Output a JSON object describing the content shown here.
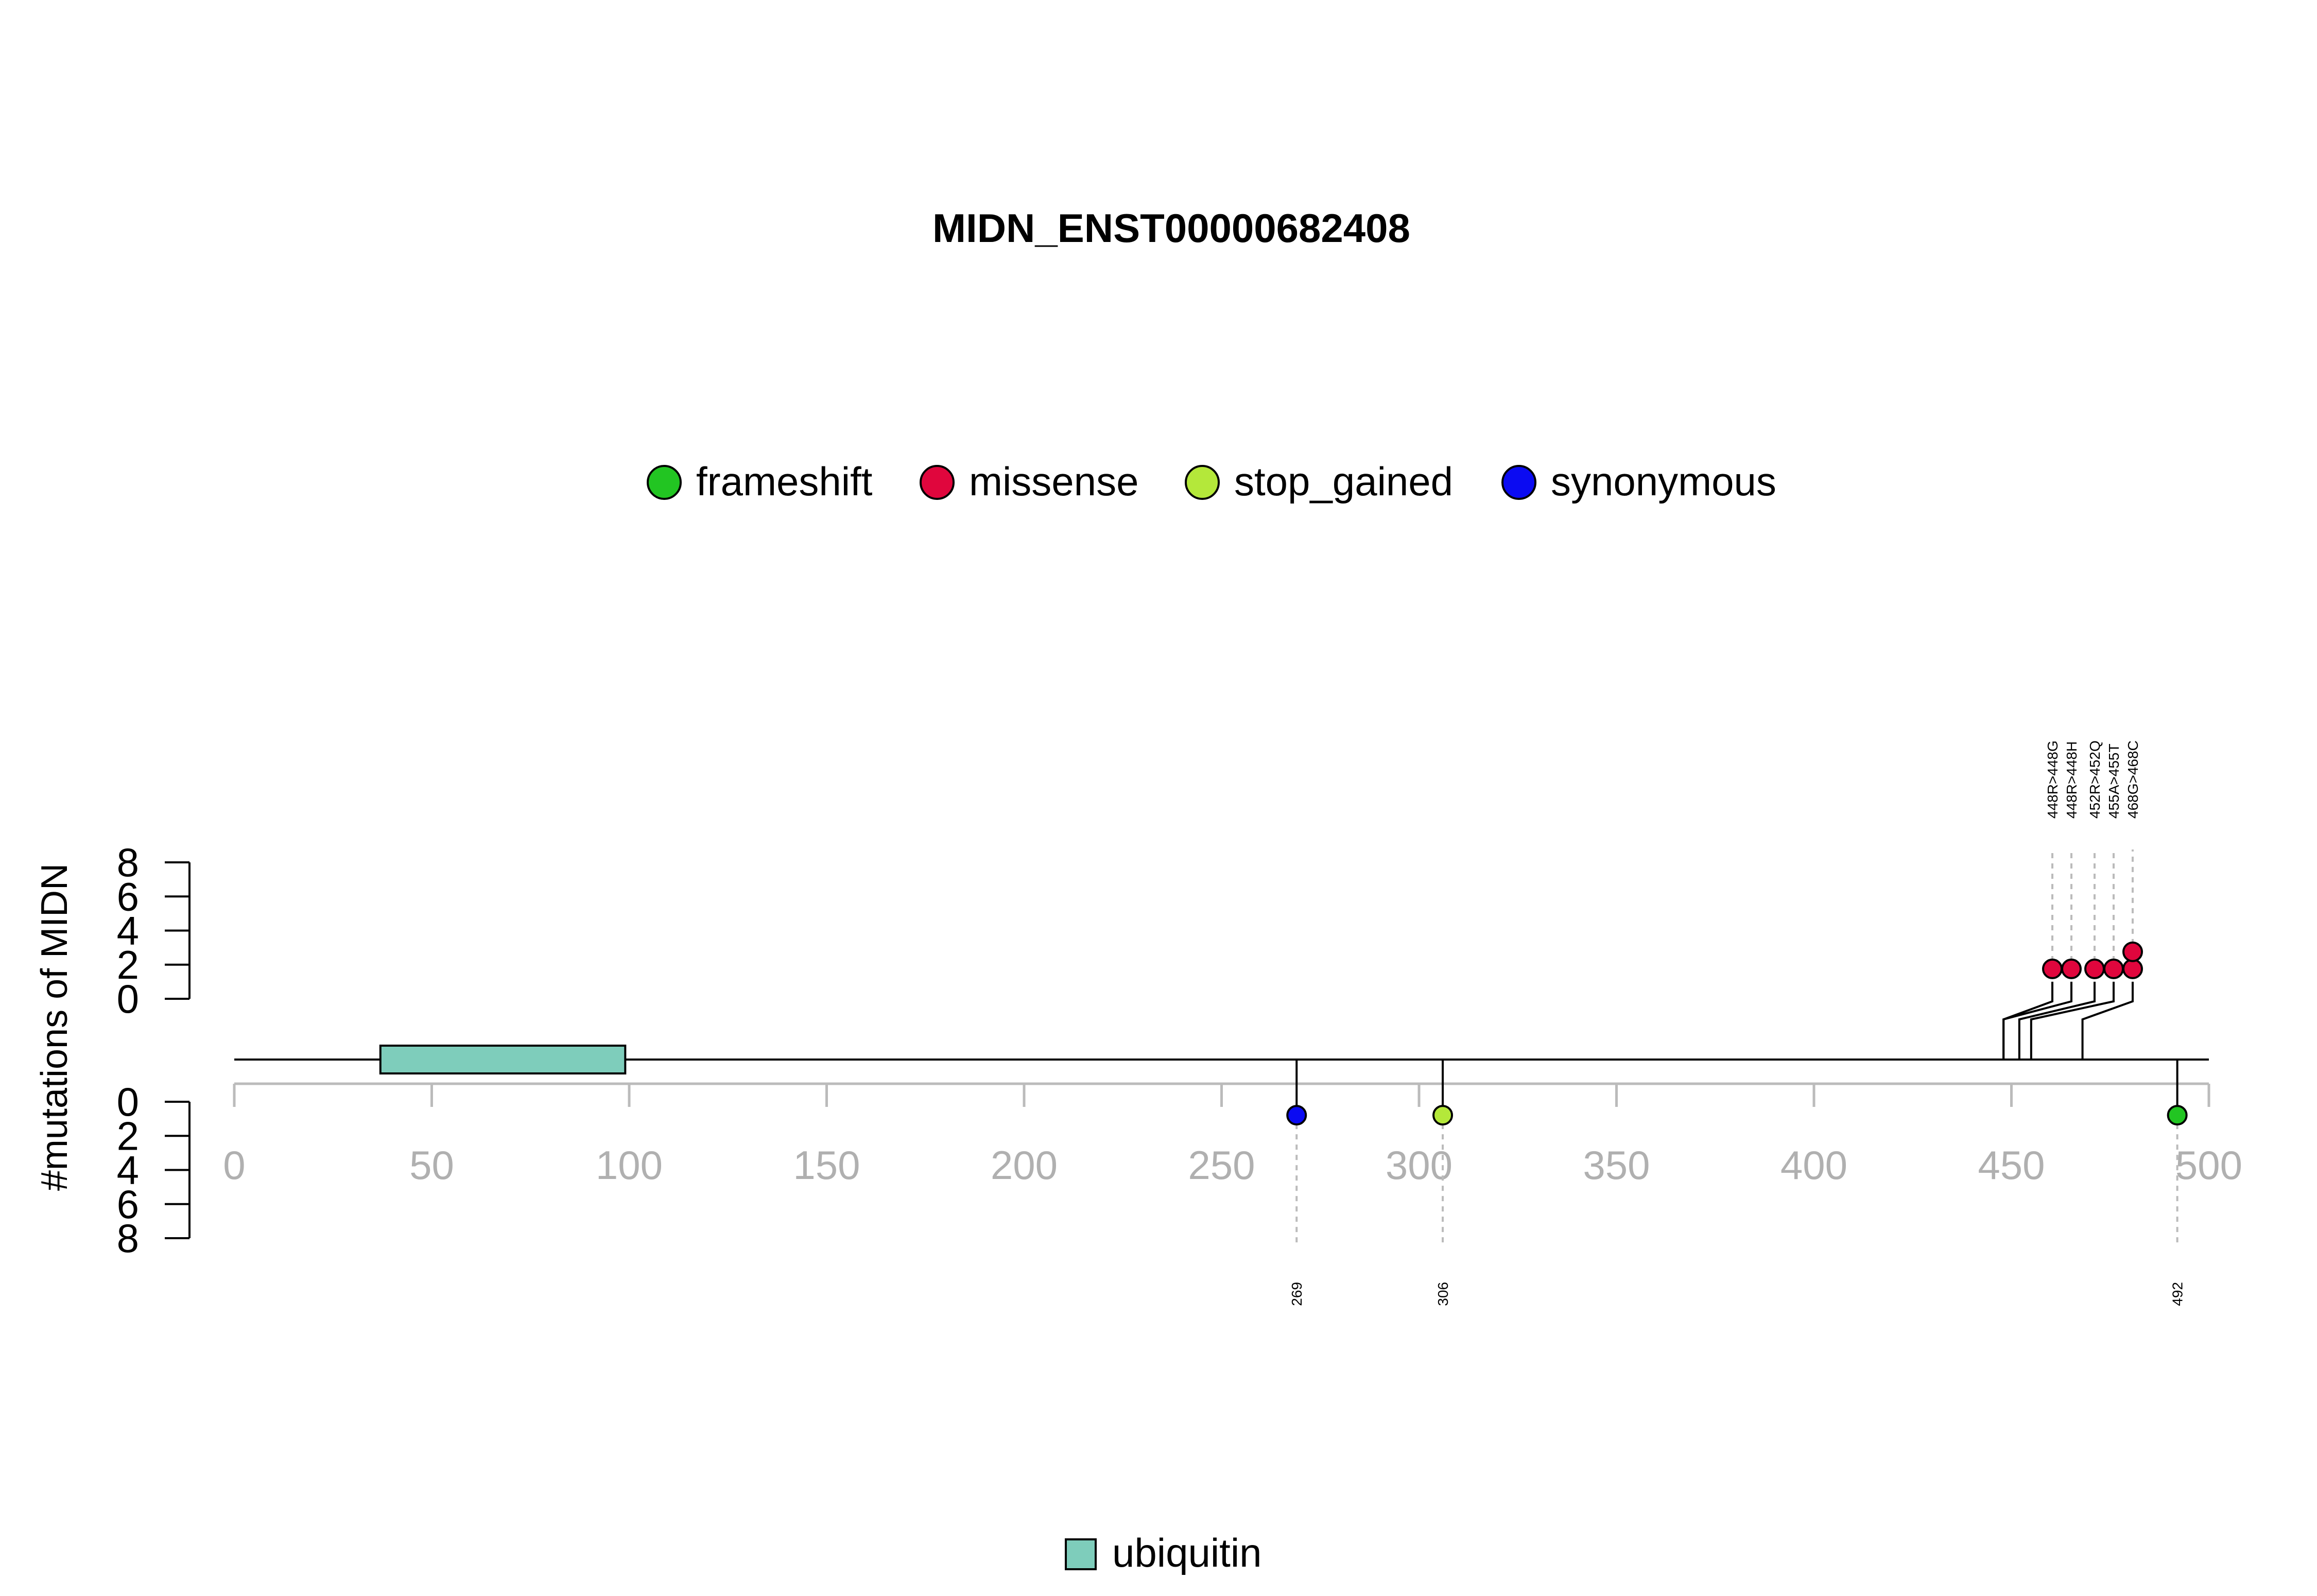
{
  "chart_data": {
    "type": "lollipop",
    "title": "MIDN_ENST00000682408",
    "ylabel": "#mutations of MIDN",
    "x_ticks": [
      "0",
      "50",
      "100",
      "150",
      "200",
      "250",
      "300",
      "350",
      "400",
      "450",
      "500"
    ],
    "xlim": [
      0,
      500
    ],
    "y_ticks_upper": [
      "0",
      "2",
      "4",
      "6",
      "8"
    ],
    "y_ticks_lower": [
      "0",
      "2",
      "4",
      "6",
      "8"
    ],
    "ylim": [
      0,
      8
    ],
    "legend": [
      {
        "label": "frameshift",
        "color": "#22c522"
      },
      {
        "label": "missense",
        "color": "#e0063d"
      },
      {
        "label": "stop_gained",
        "color": "#b4e83a"
      },
      {
        "label": "synonymous",
        "color": "#0b0bf2"
      }
    ],
    "domain_legend": [
      {
        "label": "ubiquitin",
        "color": "#7ecdbb"
      }
    ],
    "domains": [
      {
        "name": "ubiquitin",
        "start": 37,
        "end": 99,
        "color": "#7ecdbb"
      }
    ],
    "mutations_upper": [
      {
        "position": 448,
        "label": "448R>448G",
        "type": "missense",
        "count": 1
      },
      {
        "position": 448,
        "label": "448R>448H",
        "type": "missense",
        "count": 1
      },
      {
        "position": 452,
        "label": "452R>452Q",
        "type": "missense",
        "count": 1
      },
      {
        "position": 455,
        "label": "455A>455T",
        "type": "missense",
        "count": 1
      },
      {
        "position": 468,
        "label": "468G>468C",
        "type": "missense",
        "count": 2
      }
    ],
    "mutations_lower": [
      {
        "position": 269,
        "label": "269",
        "type": "synonymous",
        "count": 1
      },
      {
        "position": 306,
        "label": "306",
        "type": "stop_gained",
        "count": 1
      },
      {
        "position": 492,
        "label": "492",
        "type": "frameshift",
        "count": 1
      }
    ]
  }
}
